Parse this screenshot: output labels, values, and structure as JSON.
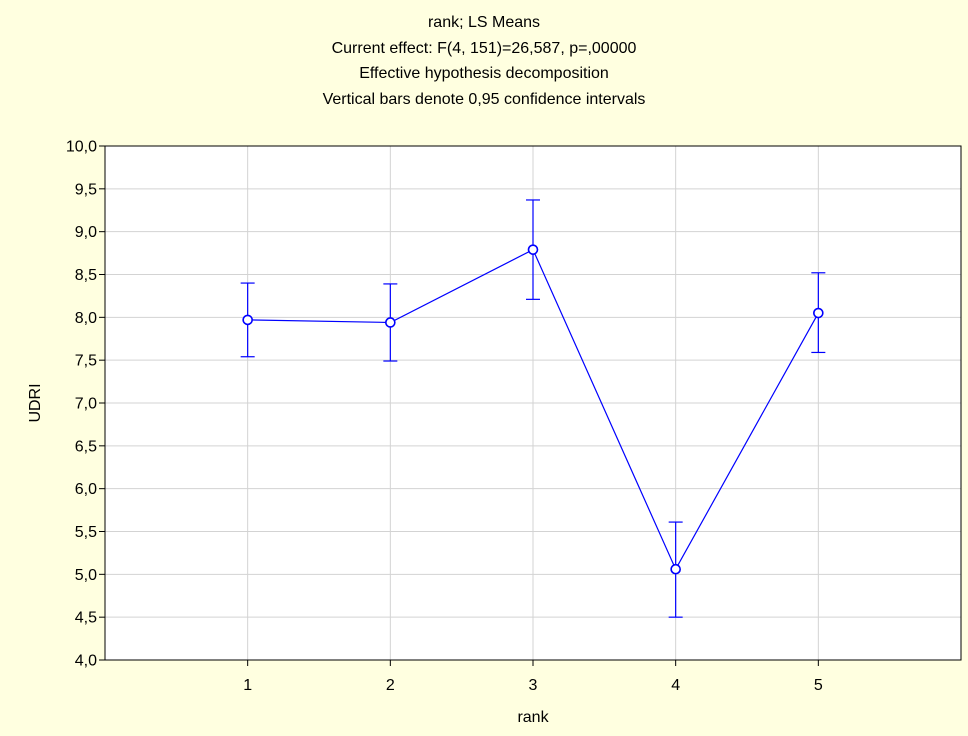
{
  "chart_data": {
    "type": "line",
    "title_lines": [
      "rank; LS Means",
      "Current effect: F(4, 151)=26,587, p=,00000",
      "Effective hypothesis decomposition",
      "Vertical bars denote 0,95 confidence intervals"
    ],
    "xlabel": "rank",
    "ylabel": "UDRI",
    "categories": [
      "1",
      "2",
      "3",
      "4",
      "5"
    ],
    "series": [
      {
        "values": [
          7.97,
          7.94,
          8.79,
          5.06,
          8.05
        ],
        "ci_lower": [
          7.54,
          7.49,
          8.21,
          4.5,
          7.59
        ],
        "ci_upper": [
          8.4,
          8.39,
          9.37,
          5.61,
          8.52
        ]
      }
    ],
    "ylim": [
      4.0,
      10.0
    ],
    "yticks": [
      "4,0",
      "4,5",
      "5,0",
      "5,5",
      "6,0",
      "6,5",
      "7,0",
      "7,5",
      "8,0",
      "8,5",
      "9,0",
      "9,5",
      "10,0"
    ],
    "grid": true,
    "colors": {
      "series": "#0000ff",
      "background": "#ffffe0",
      "plot_background": "#ffffff",
      "grid": "#d3d3d3"
    }
  }
}
